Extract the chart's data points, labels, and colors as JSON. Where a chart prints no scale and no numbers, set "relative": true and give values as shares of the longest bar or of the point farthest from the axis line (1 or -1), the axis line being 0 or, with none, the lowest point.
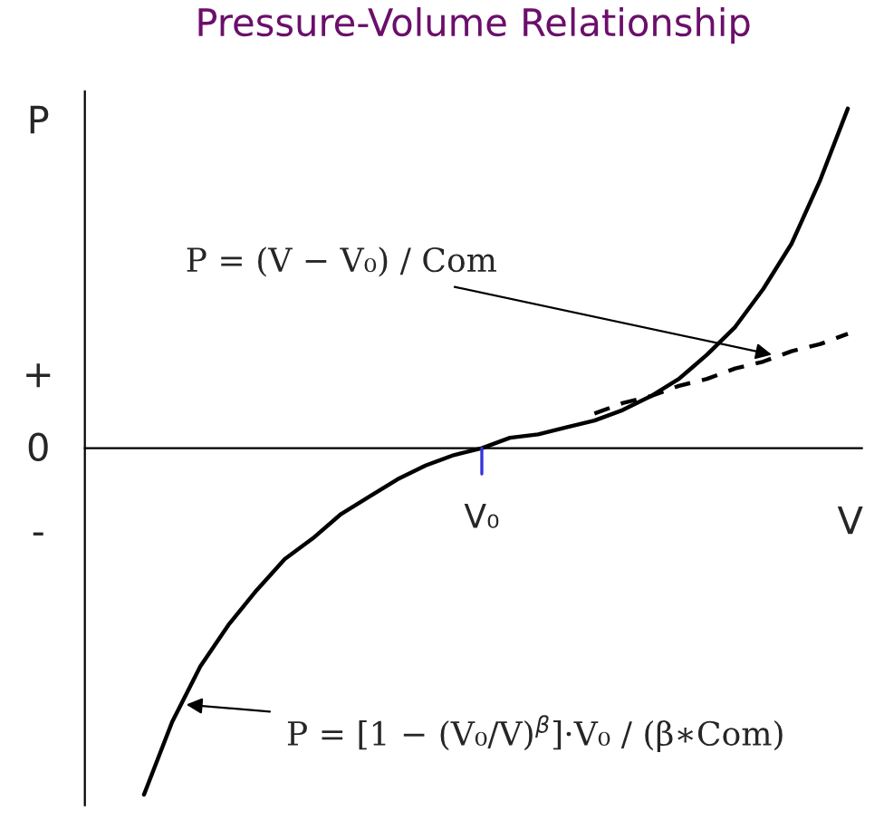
{
  "chart_data": {
    "type": "line",
    "title": "Pressure-Volume Relationship",
    "xlabel": "V",
    "ylabel": "P",
    "relative": true,
    "categories": [
      null,
      null,
      null,
      null,
      null,
      null,
      null,
      null,
      null,
      null,
      null,
      null,
      null,
      null,
      null,
      null,
      null,
      null,
      null,
      null,
      null,
      null,
      null,
      null,
      null,
      null
    ],
    "series": [
      {
        "color": "#000000",
        "line_style": "solid",
        "values": [
          -1,
          -0.79,
          -0.63,
          -0.51,
          -0.41,
          -0.32,
          -0.26,
          -0.19,
          -0.14,
          -0.09,
          -0.05,
          -0.02,
          0,
          0.03,
          0.04,
          0.06,
          0.08,
          0.11,
          0.15,
          0.2,
          0.27,
          0.35,
          0.46,
          0.59,
          0.77,
          0.98
        ]
      },
      {
        "color": "#000000",
        "line_style": "dashed",
        "values": [
          null,
          null,
          null,
          null,
          null,
          null,
          null,
          null,
          null,
          null,
          null,
          null,
          null,
          null,
          null,
          null,
          0.1,
          0.13,
          0.15,
          0.18,
          0.2,
          0.23,
          0.25,
          0.28,
          0.3,
          0.33
        ]
      }
    ],
    "annotations": [
      "+",
      "0",
      "-",
      "V₀",
      "P = (V − V₀) / Com",
      "P = [1 − (V₀/V)$^{β}$]·V₀ / (β∗Com)"
    ],
    "marker": "none"
  }
}
